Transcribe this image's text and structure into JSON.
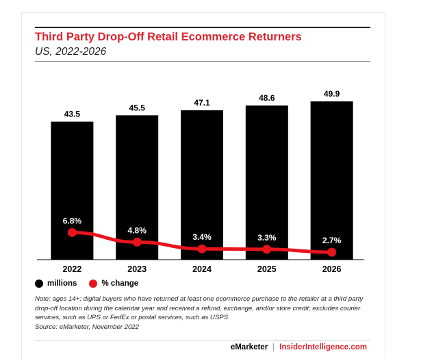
{
  "chart_data": {
    "type": "bar",
    "title": "Third Party Drop-Off Retail Ecommerce Returners",
    "subtitle": "US, 2022-2026",
    "categories": [
      "2022",
      "2023",
      "2024",
      "2025",
      "2026"
    ],
    "series": [
      {
        "name": "millions",
        "type": "bar",
        "values": [
          43.5,
          45.5,
          47.1,
          48.6,
          49.9
        ],
        "labels": [
          "43.5",
          "45.5",
          "47.1",
          "48.6",
          "49.9"
        ],
        "color": "#000000"
      },
      {
        "name": "% change",
        "type": "line",
        "values": [
          6.8,
          4.8,
          3.4,
          3.3,
          2.7
        ],
        "labels": [
          "6.8%",
          "4.8%",
          "3.4%",
          "3.3%",
          "2.7%"
        ],
        "color": "#e8141c"
      }
    ],
    "grid": false,
    "legend_position": "bottom-left"
  },
  "note": "Note: ages 14+; digital buyers who have returned at least one ecommerce purchase to the retailer at a third party drop-off location during the calendar year and received a refund, exchange, and/or store credit; excludes courier services, such as UPS or FedEx or postal services, such as USPS",
  "source": "Source: eMarketer, November 2022",
  "footer": {
    "brand1": "eMarketer",
    "separator": "|",
    "brand2": "InsiderIntelligence.com"
  },
  "colors": {
    "title": "#d9262f",
    "bar": "#000000",
    "line": "#e8141c"
  }
}
